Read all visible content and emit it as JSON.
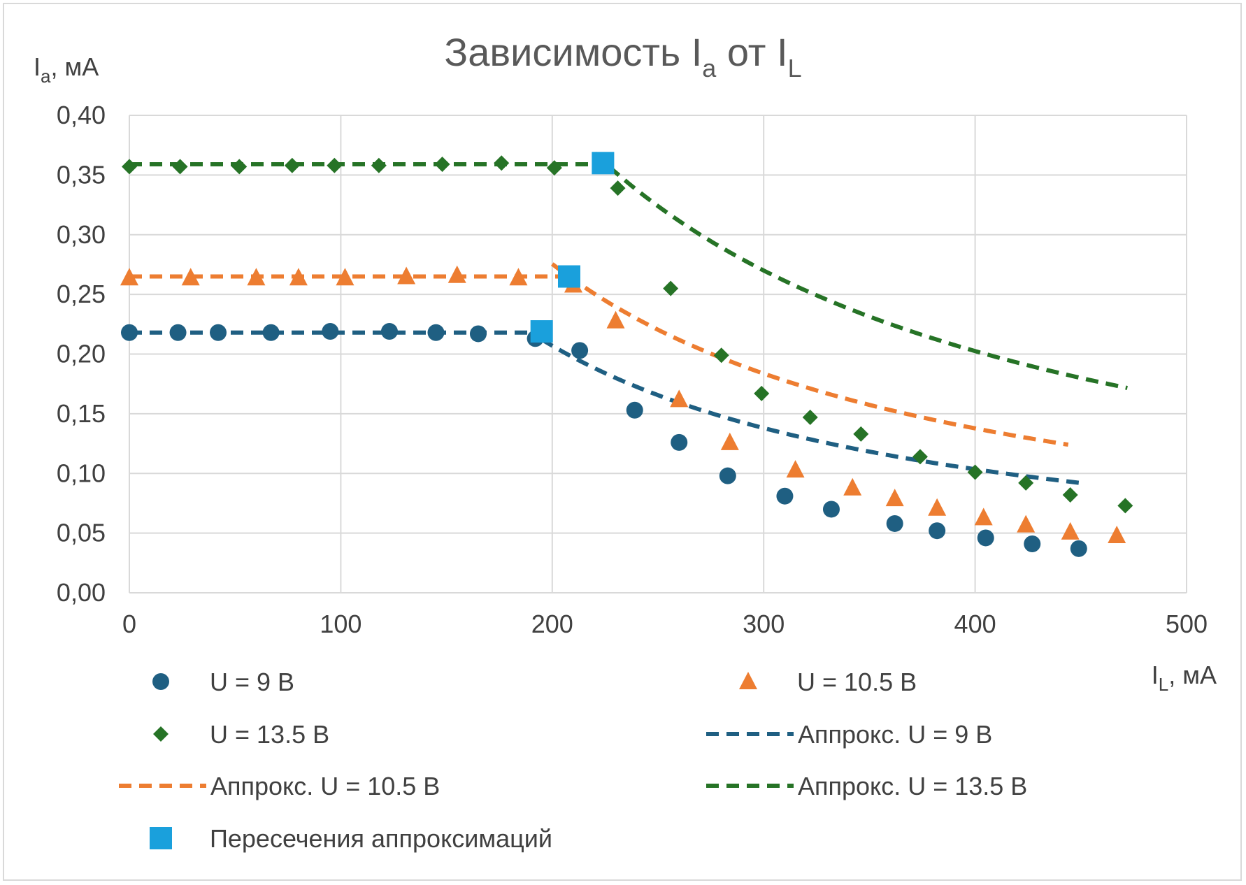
{
  "chart_data": {
    "type": "scatter",
    "title": {
      "main": "Зависимость I",
      "sub1": "a",
      "mid": " от I",
      "sub2": "L"
    },
    "ylabel": {
      "main": "I",
      "sub": "a",
      "rest": ", мА"
    },
    "xlabel": {
      "main": "I",
      "sub": "L",
      "rest": ", мА"
    },
    "xlim": [
      0,
      500
    ],
    "ylim": [
      0,
      0.4
    ],
    "x_ticks": [
      "0",
      "100",
      "200",
      "300",
      "400",
      "500"
    ],
    "y_ticks": [
      "0,00",
      "0,05",
      "0,10",
      "0,15",
      "0,20",
      "0,25",
      "0,30",
      "0,35",
      "0,40"
    ],
    "grid": true,
    "legend_position": "bottom",
    "colors": {
      "u9": "#1f5f82",
      "u105": "#ed7d31",
      "u135": "#267326",
      "intersect": "#1aa0dc"
    },
    "series": [
      {
        "name": "U = 9 В",
        "marker": "circle",
        "color": "#1f5f82",
        "x": [
          0,
          23,
          42,
          67,
          95,
          123,
          145,
          165,
          192,
          213,
          239,
          260,
          283,
          310,
          332,
          362,
          382,
          405,
          427,
          449
        ],
        "y": [
          0.218,
          0.218,
          0.218,
          0.218,
          0.219,
          0.219,
          0.218,
          0.217,
          0.213,
          0.203,
          0.153,
          0.126,
          0.098,
          0.081,
          0.07,
          0.058,
          0.052,
          0.046,
          0.041,
          0.037
        ]
      },
      {
        "name": "U = 10.5 В",
        "marker": "triangle",
        "color": "#ed7d31",
        "x": [
          0,
          29,
          60,
          80,
          102,
          131,
          155,
          184,
          210,
          230,
          260,
          284,
          315,
          342,
          362,
          382,
          404,
          424,
          445,
          467
        ],
        "y": [
          0.264,
          0.264,
          0.264,
          0.264,
          0.264,
          0.265,
          0.266,
          0.264,
          0.258,
          0.228,
          0.162,
          0.126,
          0.103,
          0.088,
          0.079,
          0.071,
          0.063,
          0.057,
          0.051,
          0.048
        ]
      },
      {
        "name": "U = 13.5 В",
        "marker": "diamond",
        "color": "#267326",
        "x": [
          0,
          24,
          52,
          77,
          97,
          118,
          148,
          176,
          201,
          231,
          256,
          280,
          299,
          322,
          346,
          374,
          400,
          424,
          445,
          471
        ],
        "y": [
          0.357,
          0.357,
          0.357,
          0.358,
          0.358,
          0.358,
          0.359,
          0.36,
          0.356,
          0.339,
          0.255,
          0.199,
          0.167,
          0.147,
          0.133,
          0.114,
          0.101,
          0.092,
          0.082,
          0.073
        ]
      },
      {
        "name": "Аппрокс. U = 9 В",
        "line": "dashed",
        "color": "#1f5f82",
        "flat_y": 0.218,
        "flat_range": [
          0,
          195
        ],
        "hyperbola_k": 41.4,
        "hyperbola_range": [
          195,
          450
        ]
      },
      {
        "name": "Аппрокс. U = 10.5 В",
        "line": "dashed",
        "color": "#ed7d31",
        "flat_y": 0.265,
        "flat_range": [
          0,
          208
        ],
        "hyperbola_k": 55.1,
        "hyperbola_range": [
          200,
          445
        ]
      },
      {
        "name": "Аппрокс. U = 13.5 В",
        "line": "dashed",
        "color": "#267326",
        "flat_y": 0.359,
        "flat_range": [
          0,
          224
        ],
        "hyperbola_k": 81.0,
        "hyperbola_range": [
          220,
          472
        ]
      },
      {
        "name": "Пересечения аппроксимаций",
        "marker": "square",
        "color": "#1aa0dc",
        "x": [
          195,
          208,
          224
        ],
        "y": [
          0.219,
          0.265,
          0.36
        ]
      }
    ]
  }
}
